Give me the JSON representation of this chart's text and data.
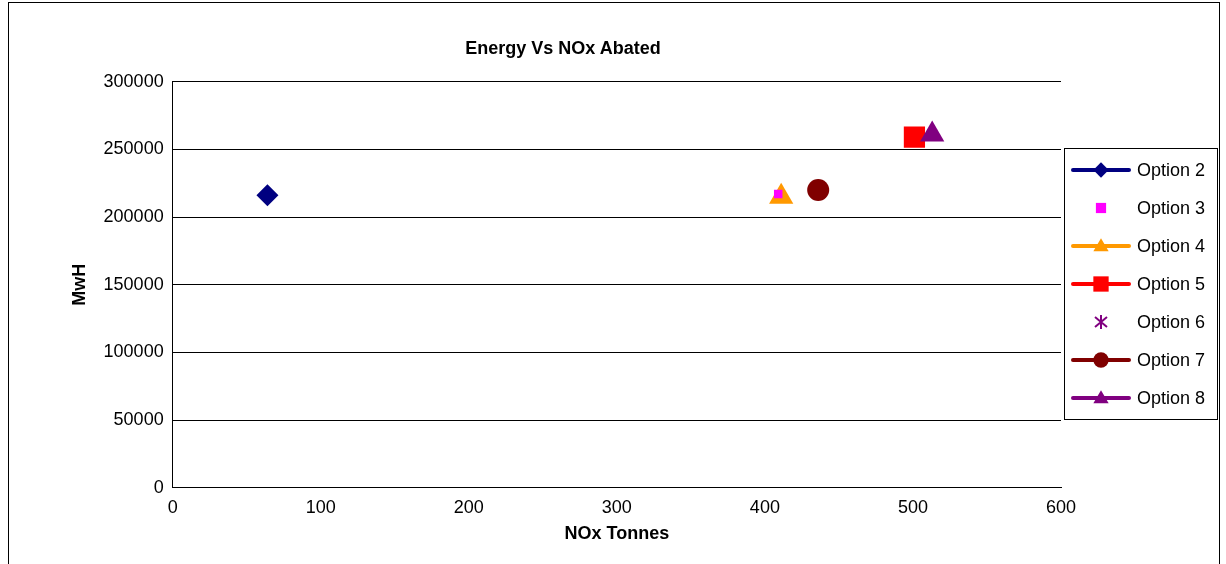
{
  "chart_data": {
    "type": "scatter",
    "title": "Energy Vs NOx Abated",
    "xlabel": "NOx Tonnes",
    "ylabel": "MwH",
    "xlim": [
      0,
      600
    ],
    "xticks": [
      0,
      100,
      200,
      300,
      400,
      500,
      600
    ],
    "ylim": [
      0,
      300000
    ],
    "yticks": [
      0,
      50000,
      100000,
      150000,
      200000,
      250000,
      300000
    ],
    "grid": "y",
    "legend": "right",
    "series": [
      {
        "name": "Option 2",
        "type": "line",
        "marker": "diamond",
        "color": "#000080",
        "x": [
          64
        ],
        "values": [
          216000
        ]
      },
      {
        "name": "Option 3",
        "type": "scatter",
        "marker": "square",
        "color": "#ff00ff",
        "x": [
          409
        ],
        "values": [
          217000
        ]
      },
      {
        "name": "Option 4",
        "type": "line",
        "marker": "triangle",
        "color": "#ff9900",
        "x": [
          411
        ],
        "values": [
          215000
        ]
      },
      {
        "name": "Option 5",
        "type": "line",
        "marker": "square",
        "color": "#ff0000",
        "x": [
          501
        ],
        "values": [
          259000
        ]
      },
      {
        "name": "Option 6",
        "type": "scatter",
        "marker": "star",
        "color": "#800080",
        "x": [
          null
        ],
        "values": [
          null
        ]
      },
      {
        "name": "Option 7",
        "type": "line",
        "marker": "circle",
        "color": "#800000",
        "x": [
          436
        ],
        "values": [
          220000
        ]
      },
      {
        "name": "Option 8",
        "type": "line",
        "marker": "triangle",
        "color": "#800080",
        "x": [
          513
        ],
        "values": [
          261000
        ]
      }
    ]
  }
}
